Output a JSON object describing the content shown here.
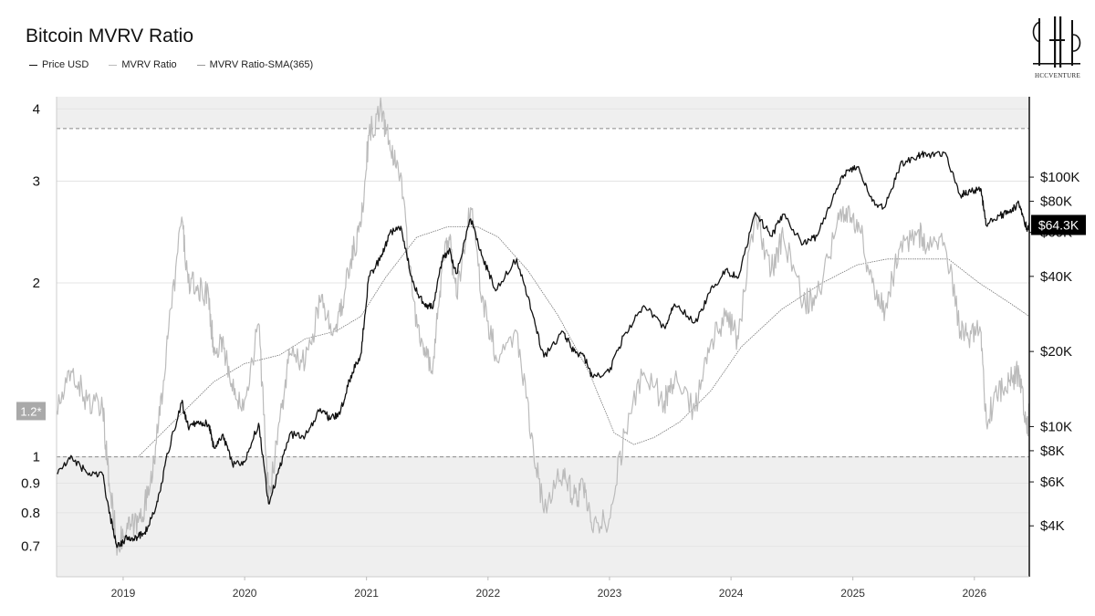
{
  "chart_data": {
    "type": "line",
    "title": "Bitcoin MVRV Ratio",
    "legend": [
      "Price USD",
      "MVRV Ratio",
      "MVRV Ratio-SMA(365)"
    ],
    "legend_placement": "top-left",
    "x_ticks": [
      "2019",
      "2020",
      "2021",
      "2022",
      "2023",
      "2024",
      "2025",
      "2026"
    ],
    "x_range": [
      "2018-06-15",
      "2026-06-15"
    ],
    "y_left": {
      "scale": "log",
      "range": [
        0.62,
        4.2
      ],
      "ticks": [
        0.7,
        0.8,
        0.9,
        1,
        2,
        3,
        4
      ],
      "tick_labels": [
        "0.7",
        "0.8",
        "0.9",
        "1",
        "2",
        "3",
        "4"
      ]
    },
    "y_right": {
      "scale": "log",
      "range": [
        2500,
        210000
      ],
      "ticks": [
        4000,
        6000,
        8000,
        10000,
        20000,
        40000,
        60000,
        80000,
        100000
      ],
      "tick_labels": [
        "$4K",
        "$6K",
        "$8K",
        "$10K",
        "$20K",
        "$40K",
        "$60K",
        "$80K",
        "$100K"
      ]
    },
    "reference_lines": [
      {
        "axis": "left",
        "value": 1.0,
        "style": "dashed"
      },
      {
        "axis": "left",
        "value": 3.7,
        "style": "dashed"
      }
    ],
    "current_price_label": "$64.3K",
    "current_mvrv_label": "1.2*",
    "series": [
      {
        "name": "Price USD",
        "axis": "right",
        "color": "#111111",
        "points": [
          [
            "2018-06-15",
            6500
          ],
          [
            "2018-08-01",
            7500
          ],
          [
            "2018-09-15",
            6500
          ],
          [
            "2018-11-01",
            6400
          ],
          [
            "2018-11-20",
            4500
          ],
          [
            "2018-12-15",
            3300
          ],
          [
            "2019-01-15",
            3600
          ],
          [
            "2019-02-15",
            3600
          ],
          [
            "2019-03-15",
            3900
          ],
          [
            "2019-04-15",
            5000
          ],
          [
            "2019-05-15",
            7800
          ],
          [
            "2019-06-26",
            12500
          ],
          [
            "2019-07-15",
            10000
          ],
          [
            "2019-08-15",
            10500
          ],
          [
            "2019-09-15",
            10200
          ],
          [
            "2019-10-01",
            8200
          ],
          [
            "2019-10-26",
            9300
          ],
          [
            "2019-11-25",
            7100
          ],
          [
            "2019-12-31",
            7200
          ],
          [
            "2020-02-12",
            10300
          ],
          [
            "2020-03-13",
            4900
          ],
          [
            "2020-04-15",
            6800
          ],
          [
            "2020-05-15",
            9300
          ],
          [
            "2020-07-01",
            9200
          ],
          [
            "2020-08-15",
            11800
          ],
          [
            "2020-09-15",
            10700
          ],
          [
            "2020-10-15",
            11500
          ],
          [
            "2020-11-15",
            16000
          ],
          [
            "2020-12-15",
            19500
          ],
          [
            "2021-01-08",
            40000
          ],
          [
            "2021-02-15",
            48000
          ],
          [
            "2021-03-13",
            60000
          ],
          [
            "2021-04-14",
            63500
          ],
          [
            "2021-05-19",
            38000
          ],
          [
            "2021-06-22",
            31000
          ],
          [
            "2021-07-20",
            30000
          ],
          [
            "2021-08-15",
            46000
          ],
          [
            "2021-09-06",
            51000
          ],
          [
            "2021-09-28",
            41000
          ],
          [
            "2021-11-10",
            68000
          ],
          [
            "2021-12-15",
            48000
          ],
          [
            "2022-01-24",
            35000
          ],
          [
            "2022-03-28",
            47000
          ],
          [
            "2022-05-12",
            29000
          ],
          [
            "2022-06-18",
            19000
          ],
          [
            "2022-08-15",
            24000
          ],
          [
            "2022-09-15",
            20000
          ],
          [
            "2022-10-15",
            19200
          ],
          [
            "2022-11-09",
            16000
          ],
          [
            "2022-12-31",
            16500
          ],
          [
            "2023-02-15",
            23500
          ],
          [
            "2023-04-14",
            30500
          ],
          [
            "2023-06-15",
            25000
          ],
          [
            "2023-07-15",
            31000
          ],
          [
            "2023-09-15",
            26200
          ],
          [
            "2023-10-30",
            34500
          ],
          [
            "2023-12-15",
            42500
          ],
          [
            "2024-01-23",
            39500
          ],
          [
            "2024-03-14",
            72000
          ],
          [
            "2024-05-01",
            58000
          ],
          [
            "2024-06-06",
            71000
          ],
          [
            "2024-08-05",
            54000
          ],
          [
            "2024-09-15",
            58000
          ],
          [
            "2024-11-13",
            90000
          ],
          [
            "2024-12-17",
            107000
          ],
          [
            "2025-01-20",
            108000
          ],
          [
            "2025-02-28",
            80000
          ],
          [
            "2025-04-08",
            76000
          ],
          [
            "2025-05-22",
            111000
          ],
          [
            "2025-07-14",
            122000
          ],
          [
            "2025-08-14",
            123000
          ],
          [
            "2025-10-06",
            125000
          ],
          [
            "2025-11-21",
            84000
          ],
          [
            "2025-12-15",
            88000
          ],
          [
            "2026-01-20",
            90000
          ],
          [
            "2026-02-06",
            64000
          ],
          [
            "2026-03-15",
            70000
          ],
          [
            "2026-04-15",
            72000
          ],
          [
            "2026-05-15",
            78000
          ],
          [
            "2026-06-08",
            62000
          ],
          [
            "2026-06-15",
            64300
          ]
        ]
      },
      {
        "name": "MVRV Ratio",
        "axis": "left",
        "color": "#bbbbbb",
        "points": [
          [
            "2018-06-15",
            1.2
          ],
          [
            "2018-08-01",
            1.4
          ],
          [
            "2018-09-15",
            1.25
          ],
          [
            "2018-11-01",
            1.2
          ],
          [
            "2018-11-20",
            0.9
          ],
          [
            "2018-12-15",
            0.7
          ],
          [
            "2019-01-15",
            0.75
          ],
          [
            "2019-02-15",
            0.77
          ],
          [
            "2019-03-15",
            0.85
          ],
          [
            "2019-04-15",
            1.1
          ],
          [
            "2019-05-15",
            1.6
          ],
          [
            "2019-06-26",
            2.6
          ],
          [
            "2019-07-15",
            2.0
          ],
          [
            "2019-08-15",
            1.95
          ],
          [
            "2019-09-15",
            1.9
          ],
          [
            "2019-10-01",
            1.5
          ],
          [
            "2019-10-26",
            1.6
          ],
          [
            "2019-11-25",
            1.3
          ],
          [
            "2019-12-31",
            1.25
          ],
          [
            "2020-02-12",
            1.7
          ],
          [
            "2020-03-13",
            0.85
          ],
          [
            "2020-04-15",
            1.15
          ],
          [
            "2020-05-15",
            1.5
          ],
          [
            "2020-07-01",
            1.45
          ],
          [
            "2020-08-15",
            1.85
          ],
          [
            "2020-09-15",
            1.7
          ],
          [
            "2020-10-15",
            1.75
          ],
          [
            "2020-11-15",
            2.2
          ],
          [
            "2020-12-15",
            2.5
          ],
          [
            "2021-01-08",
            3.6
          ],
          [
            "2021-02-15",
            4.0
          ],
          [
            "2021-03-13",
            3.4
          ],
          [
            "2021-04-14",
            3.1
          ],
          [
            "2021-05-19",
            1.9
          ],
          [
            "2021-06-22",
            1.5
          ],
          [
            "2021-07-20",
            1.45
          ],
          [
            "2021-08-15",
            2.1
          ],
          [
            "2021-09-06",
            2.4
          ],
          [
            "2021-09-28",
            1.9
          ],
          [
            "2021-11-10",
            2.7
          ],
          [
            "2021-12-15",
            1.9
          ],
          [
            "2022-01-24",
            1.5
          ],
          [
            "2022-03-28",
            1.65
          ],
          [
            "2022-05-12",
            1.1
          ],
          [
            "2022-06-18",
            0.8
          ],
          [
            "2022-08-15",
            0.95
          ],
          [
            "2022-09-15",
            0.85
          ],
          [
            "2022-10-15",
            0.88
          ],
          [
            "2022-11-09",
            0.75
          ],
          [
            "2022-12-31",
            0.78
          ],
          [
            "2023-02-15",
            1.1
          ],
          [
            "2023-04-14",
            1.4
          ],
          [
            "2023-06-15",
            1.25
          ],
          [
            "2023-07-15",
            1.35
          ],
          [
            "2023-09-15",
            1.2
          ],
          [
            "2023-10-30",
            1.55
          ],
          [
            "2023-12-15",
            1.75
          ],
          [
            "2024-01-23",
            1.6
          ],
          [
            "2024-03-14",
            2.65
          ],
          [
            "2024-05-01",
            2.1
          ],
          [
            "2024-06-06",
            2.4
          ],
          [
            "2024-08-05",
            1.85
          ],
          [
            "2024-09-15",
            1.9
          ],
          [
            "2024-11-13",
            2.5
          ],
          [
            "2024-12-17",
            2.7
          ],
          [
            "2025-01-20",
            2.5
          ],
          [
            "2025-02-28",
            2.0
          ],
          [
            "2025-04-08",
            1.8
          ],
          [
            "2025-05-22",
            2.3
          ],
          [
            "2025-07-14",
            2.45
          ],
          [
            "2025-08-14",
            2.35
          ],
          [
            "2025-10-06",
            2.3
          ],
          [
            "2025-11-21",
            1.65
          ],
          [
            "2025-12-15",
            1.6
          ],
          [
            "2026-01-20",
            1.65
          ],
          [
            "2026-02-06",
            1.15
          ],
          [
            "2026-03-15",
            1.3
          ],
          [
            "2026-04-15",
            1.35
          ],
          [
            "2026-05-15",
            1.4
          ],
          [
            "2026-06-08",
            1.1
          ],
          [
            "2026-06-15",
            1.2
          ]
        ]
      },
      {
        "name": "MVRV Ratio-SMA(365)",
        "axis": "left",
        "color": "#777777",
        "points": [
          [
            "2019-02-15",
            1.0
          ],
          [
            "2019-06-01",
            1.15
          ],
          [
            "2019-10-01",
            1.35
          ],
          [
            "2020-01-01",
            1.45
          ],
          [
            "2020-04-15",
            1.5
          ],
          [
            "2020-07-01",
            1.6
          ],
          [
            "2020-10-01",
            1.65
          ],
          [
            "2020-12-15",
            1.75
          ],
          [
            "2021-03-01",
            2.05
          ],
          [
            "2021-06-01",
            2.4
          ],
          [
            "2021-09-01",
            2.5
          ],
          [
            "2021-12-01",
            2.5
          ],
          [
            "2022-02-01",
            2.4
          ],
          [
            "2022-05-01",
            2.1
          ],
          [
            "2022-08-01",
            1.75
          ],
          [
            "2022-11-01",
            1.4
          ],
          [
            "2023-01-15",
            1.1
          ],
          [
            "2023-03-15",
            1.05
          ],
          [
            "2023-05-15",
            1.08
          ],
          [
            "2023-08-01",
            1.15
          ],
          [
            "2023-11-01",
            1.3
          ],
          [
            "2024-02-01",
            1.55
          ],
          [
            "2024-06-01",
            1.8
          ],
          [
            "2024-10-01",
            2.0
          ],
          [
            "2025-01-15",
            2.15
          ],
          [
            "2025-04-15",
            2.2
          ],
          [
            "2025-07-15",
            2.2
          ],
          [
            "2025-10-15",
            2.2
          ],
          [
            "2026-01-15",
            2.0
          ],
          [
            "2026-04-15",
            1.85
          ],
          [
            "2026-06-15",
            1.75
          ]
        ]
      }
    ]
  },
  "logo": {
    "text": "HCCVENTURE"
  },
  "colors": {
    "shade": "#efefef",
    "price": "#111111",
    "mvrv": "#bbbbbb",
    "sma": "#777777",
    "badge_price_bg": "#000000",
    "badge_mvrv_bg": "#a9a9a9"
  }
}
